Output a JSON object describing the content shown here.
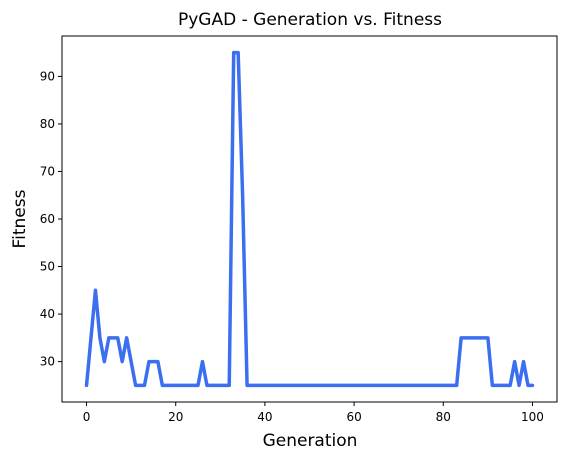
{
  "chart_data": {
    "type": "line",
    "title": "PyGAD - Generation vs. Fitness",
    "xlabel": "Generation",
    "ylabel": "Fitness",
    "xlim": [
      -5.5,
      105.5
    ],
    "ylim": [
      21.5,
      98.5
    ],
    "xticks": [
      0,
      20,
      40,
      60,
      80,
      100
    ],
    "yticks": [
      30,
      40,
      50,
      60,
      70,
      80,
      90
    ],
    "grid": false,
    "series": [
      {
        "color": "#3c6ef0",
        "x": [
          0,
          2,
          3,
          4,
          5,
          6,
          7,
          8,
          9,
          10,
          11,
          12,
          13,
          14,
          15,
          16,
          17,
          18,
          19,
          20,
          21,
          22,
          23,
          24,
          25,
          26,
          27,
          28,
          29,
          30,
          31,
          32,
          33,
          34,
          35,
          36,
          37,
          40,
          50,
          60,
          70,
          80,
          83,
          84,
          85,
          86,
          87,
          88,
          89,
          90,
          91,
          92,
          93,
          94,
          95,
          96,
          97,
          98,
          99,
          100
        ],
        "y": [
          25,
          45,
          35,
          30,
          35,
          35,
          35,
          30,
          35,
          30,
          25,
          25,
          25,
          30,
          30,
          30,
          25,
          25,
          25,
          25,
          25,
          25,
          25,
          25,
          25,
          30,
          25,
          25,
          25,
          25,
          25,
          25,
          95,
          95,
          65,
          25,
          25,
          25,
          25,
          25,
          25,
          25,
          25,
          35,
          35,
          35,
          35,
          35,
          35,
          35,
          25,
          25,
          25,
          25,
          25,
          30,
          25,
          30,
          25,
          25
        ]
      }
    ]
  }
}
